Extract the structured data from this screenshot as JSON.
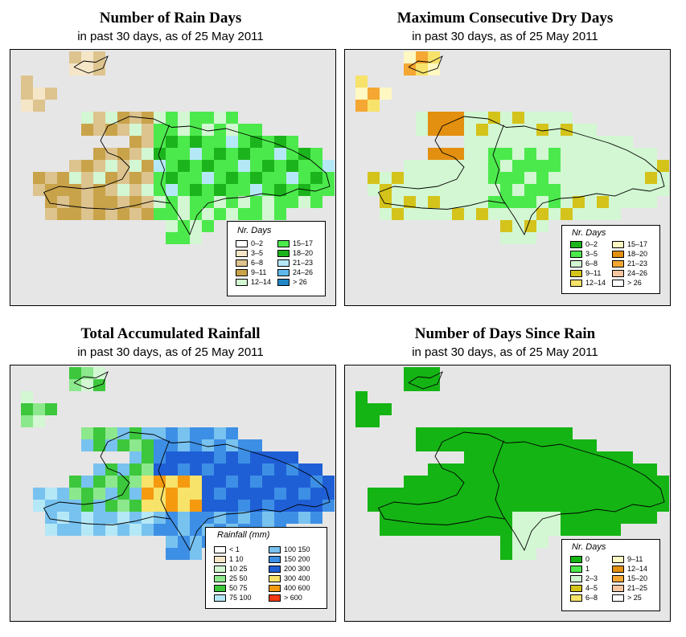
{
  "panels": [
    {
      "id": "rain-days",
      "title": "Number of Rain Days",
      "subtitle": "in past 30 days, as of  25 May 2011",
      "legend_title": "Nr. Days",
      "legend": [
        {
          "label": "0–2",
          "color": "#ffffff"
        },
        {
          "label": "3–5",
          "color": "#f5e6c8"
        },
        {
          "label": "6–8",
          "color": "#ddc38e"
        },
        {
          "label": "9–11",
          "color": "#c9a34a"
        },
        {
          "label": "12–14",
          "color": "#d2f7d2"
        },
        {
          "label": "15–17",
          "color": "#4ce94c"
        },
        {
          "label": "18–20",
          "color": "#1cb41c"
        },
        {
          "label": "21–23",
          "color": "#b5e8f7"
        },
        {
          "label": "24–26",
          "color": "#5fb8ea"
        },
        {
          "label": "> 26",
          "color": "#1f86c6"
        }
      ]
    },
    {
      "id": "dry-days",
      "title": "Maximum Consecutive Dry Days",
      "subtitle": "in past 30 days, as of  25 May 2011",
      "legend_title": "Nr. Days",
      "legend": [
        {
          "label": "0–2",
          "color": "#1cb41c"
        },
        {
          "label": "3–5",
          "color": "#4ce94c"
        },
        {
          "label": "6–8",
          "color": "#d2f7d2"
        },
        {
          "label": "9–11",
          "color": "#d4c31a"
        },
        {
          "label": "12–14",
          "color": "#f7e26a"
        },
        {
          "label": "15–17",
          "color": "#fff8c2"
        },
        {
          "label": "18–20",
          "color": "#e38f0f"
        },
        {
          "label": "21–23",
          "color": "#f4a732"
        },
        {
          "label": "24–26",
          "color": "#f7c6a0"
        },
        {
          "label": "> 26",
          "color": "#ffffff"
        }
      ]
    },
    {
      "id": "total-rainfall",
      "title": "Total Accumulated Rainfall",
      "subtitle": "in past 30 days, as of  25 May 2011",
      "legend_title": "Rainfall (mm)",
      "legend": [
        {
          "label": "< 1",
          "color": "#ffffff"
        },
        {
          "label": "1   10",
          "color": "#f5e6c8"
        },
        {
          "label": "10   25",
          "color": "#d2f7d2"
        },
        {
          "label": "25   50",
          "color": "#8ce88c"
        },
        {
          "label": "50   75",
          "color": "#3cc73c"
        },
        {
          "label": "75   100",
          "color": "#b5e8f7"
        },
        {
          "label": "100  150",
          "color": "#78c2ef"
        },
        {
          "label": "150  200",
          "color": "#3d8fe5"
        },
        {
          "label": "200  300",
          "color": "#1f5fd6"
        },
        {
          "label": "300  400",
          "color": "#f7e26a"
        },
        {
          "label": "400  600",
          "color": "#f59a0f"
        },
        {
          "label": "> 600",
          "color": "#f23a14"
        }
      ]
    },
    {
      "id": "days-since-rain",
      "title": "Number of Days Since Rain",
      "subtitle": "in past 30 days, as of  25 May 2011",
      "legend_title": "Nr. Days",
      "legend": [
        {
          "label": "0",
          "color": "#14b414"
        },
        {
          "label": "1",
          "color": "#4ce94c"
        },
        {
          "label": "2–3",
          "color": "#d2f7d2"
        },
        {
          "label": "4–5",
          "color": "#d4c31a"
        },
        {
          "label": "6–8",
          "color": "#f7e26a"
        },
        {
          "label": "9–11",
          "color": "#fff8c2"
        },
        {
          "label": "12–14",
          "color": "#e38f0f"
        },
        {
          "label": "15–20",
          "color": "#f4a732"
        },
        {
          "label": "21–25",
          "color": "#f7c6a0"
        },
        {
          "label": "> 25",
          "color": "#ffffff"
        }
      ]
    }
  ]
}
